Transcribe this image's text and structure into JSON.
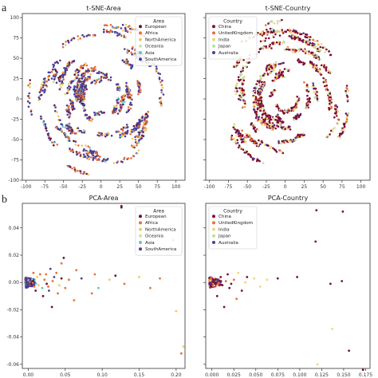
{
  "panel_letters": [
    "a",
    "b"
  ],
  "chart_data": [
    {
      "type": "scatter",
      "title": "t-SNE-Area",
      "xlim": [
        -105,
        112
      ],
      "ylim": [
        -100,
        105
      ],
      "xticks": [
        -100,
        -75,
        -50,
        -25,
        0,
        25,
        50,
        75,
        100
      ],
      "yticks": [
        -100,
        -75,
        -50,
        -25,
        0,
        25,
        50,
        75,
        100
      ],
      "legend": {
        "title": "Area",
        "position": "top-right"
      },
      "series": [
        {
          "name": "European",
          "color": "#6b0e2e"
        },
        {
          "name": "Africa",
          "color": "#e8703a"
        },
        {
          "name": "NorthAmerica",
          "color": "#f1c864"
        },
        {
          "name": "Oceania",
          "color": "#c9e7a7"
        },
        {
          "name": "Asia",
          "color": "#5ec7c8"
        },
        {
          "name": "SouthAmerica",
          "color": "#4b3e96"
        }
      ],
      "distribution": "t-SNE"
    },
    {
      "type": "scatter",
      "title": "t-SNE-Country",
      "xlim": [
        -105,
        112
      ],
      "ylim": [
        -100,
        105
      ],
      "xticks": [
        -100,
        -75,
        -50,
        -25,
        0,
        25,
        50,
        75,
        100
      ],
      "yticks": [
        -100,
        -75,
        -50,
        -25,
        0,
        25,
        50,
        75,
        100
      ],
      "legend": {
        "title": "Country",
        "position": "top-left"
      },
      "series": [
        {
          "name": "China",
          "color": "#7c0d3a"
        },
        {
          "name": "UnitedKingdom",
          "color": "#e8703a"
        },
        {
          "name": "India",
          "color": "#f5d57a"
        },
        {
          "name": "Japan",
          "color": "#b7e1a1"
        },
        {
          "name": "Australia",
          "color": "#4b3e96"
        }
      ],
      "distribution": "t-SNE"
    },
    {
      "type": "scatter",
      "title": "PCA-Area",
      "xlim": [
        -0.008,
        0.212
      ],
      "ylim": [
        -0.063,
        0.058
      ],
      "xticks": [
        0.0,
        0.05,
        0.1,
        0.15,
        0.2
      ],
      "xtick_labels": [
        "0.00",
        "0.05",
        "0.10",
        "0.15",
        "0.20"
      ],
      "yticks": [
        -0.06,
        -0.04,
        -0.02,
        0.0,
        0.02,
        0.04
      ],
      "ytick_labels": [
        "-0.06",
        "-0.04",
        "-0.02",
        "0.00",
        "0.02",
        "0.04"
      ],
      "legend": {
        "title": "Area",
        "position": "top-right"
      },
      "series": [
        {
          "name": "European",
          "color": "#6b0e2e"
        },
        {
          "name": "Africa",
          "color": "#e8703a"
        },
        {
          "name": "NorthAmerica",
          "color": "#f1c864"
        },
        {
          "name": "Oceania",
          "color": "#c9e7a7"
        },
        {
          "name": "Asia",
          "color": "#5ec7c8"
        },
        {
          "name": "SouthAmerica",
          "color": "#4b3e96"
        }
      ],
      "points": [
        [
          0.126,
          0.055,
          0
        ],
        [
          0.126,
          0.056,
          0
        ],
        [
          0.196,
          0.031,
          1
        ],
        [
          0.196,
          0.022,
          2
        ],
        [
          0.045,
          0.014,
          1
        ],
        [
          0.048,
          0.018,
          0
        ],
        [
          0.03,
          0.01,
          5
        ],
        [
          0.065,
          0.009,
          1
        ],
        [
          0.09,
          0.006,
          1
        ],
        [
          0.118,
          0.005,
          0
        ],
        [
          0.15,
          0.004,
          2
        ],
        [
          0.178,
          0.003,
          1
        ],
        [
          0.11,
          0.002,
          2
        ],
        [
          0.072,
          0.003,
          5
        ],
        [
          0.055,
          0.002,
          1
        ],
        [
          0.13,
          -0.001,
          1
        ],
        [
          0.165,
          -0.004,
          1
        ],
        [
          0.2,
          -0.021,
          2
        ],
        [
          0.207,
          -0.052,
          1
        ],
        [
          0.21,
          -0.047,
          2
        ],
        [
          0.062,
          -0.013,
          1
        ],
        [
          0.095,
          -0.004,
          4
        ],
        [
          0.086,
          -0.008,
          1
        ],
        [
          0.04,
          -0.008,
          1
        ],
        [
          0.027,
          -0.003,
          1
        ],
        [
          0.02,
          -0.01,
          0
        ],
        [
          0.032,
          -0.018,
          0
        ],
        [
          0.012,
          0.004,
          2
        ],
        [
          0.024,
          0.006,
          1
        ],
        [
          0.019,
          -0.004,
          4
        ],
        [
          0.035,
          0.004,
          5
        ],
        [
          0.042,
          -0.002,
          2
        ],
        [
          0.05,
          -0.004,
          1
        ],
        [
          0.022,
          0.002,
          1
        ],
        [
          0.014,
          -0.002,
          2
        ],
        [
          0.038,
          0.007,
          1
        ],
        [
          0.028,
          -0.006,
          5
        ],
        [
          0.016,
          0.006,
          1
        ],
        [
          0.008,
          -0.003,
          1
        ],
        [
          0.045,
          0.003,
          0
        ],
        [
          0.007,
          0.007,
          1
        ],
        [
          0.01,
          -0.006,
          0
        ],
        [
          0.033,
          0.001,
          1
        ],
        [
          0.025,
          -0.001,
          0
        ]
      ],
      "cluster": {
        "x": [
          -0.004,
          0.012
        ],
        "y": [
          -0.004,
          0.004
        ],
        "series": [
          5,
          5,
          5,
          0,
          1,
          4
        ]
      }
    },
    {
      "type": "scatter",
      "title": "PCA-Country",
      "xlim": [
        -0.007,
        0.18
      ],
      "ylim": [
        -0.063,
        0.058
      ],
      "xticks": [
        0.0,
        0.025,
        0.05,
        0.075,
        0.1,
        0.125,
        0.15,
        0.175
      ],
      "xtick_labels": [
        "0.000",
        "0.025",
        "0.050",
        "0.075",
        "0.100",
        "0.125",
        "0.150",
        "0.175"
      ],
      "yticks": [
        -0.06,
        -0.04,
        -0.02,
        0.0,
        0.02,
        0.04
      ],
      "legend": {
        "title": "Country",
        "position": "top-left"
      },
      "series": [
        {
          "name": "China",
          "color": "#7c0d3a"
        },
        {
          "name": "UnitedKingdom",
          "color": "#e8703a"
        },
        {
          "name": "India",
          "color": "#f5d57a"
        },
        {
          "name": "Japan",
          "color": "#b7e1a1"
        },
        {
          "name": "Australia",
          "color": "#4b3e96"
        }
      ],
      "points": [
        [
          0.119,
          0.053,
          0
        ],
        [
          0.149,
          0.052,
          0
        ],
        [
          0.118,
          0.03,
          0
        ],
        [
          0.097,
          0.004,
          0
        ],
        [
          0.063,
          0.002,
          2
        ],
        [
          0.075,
          0.003,
          0
        ],
        [
          0.135,
          -0.001,
          0
        ],
        [
          0.148,
          0.001,
          0
        ],
        [
          0.03,
          0.007,
          2
        ],
        [
          0.04,
          0.004,
          0
        ],
        [
          0.025,
          0.002,
          1
        ],
        [
          0.055,
          -0.003,
          2
        ],
        [
          0.034,
          -0.006,
          0
        ],
        [
          0.02,
          -0.004,
          0
        ],
        [
          0.038,
          0.0,
          2
        ],
        [
          0.01,
          0.004,
          0
        ],
        [
          0.156,
          -0.05,
          0
        ],
        [
          0.172,
          -0.064,
          0
        ],
        [
          0.137,
          -0.034,
          2
        ],
        [
          0.12,
          -0.06,
          2
        ],
        [
          0.006,
          -0.01,
          0
        ],
        [
          0.014,
          -0.018,
          0
        ],
        [
          0.028,
          -0.012,
          1
        ],
        [
          0.048,
          0.003,
          2
        ],
        [
          0.018,
          0.006,
          0
        ],
        [
          0.012,
          -0.002,
          0
        ],
        [
          0.022,
          -0.001,
          0
        ],
        [
          0.016,
          0.001,
          1
        ]
      ],
      "cluster": {
        "x": [
          -0.003,
          0.012
        ],
        "y": [
          -0.004,
          0.004
        ],
        "series": [
          0,
          0,
          0,
          1,
          2,
          4
        ]
      }
    }
  ]
}
